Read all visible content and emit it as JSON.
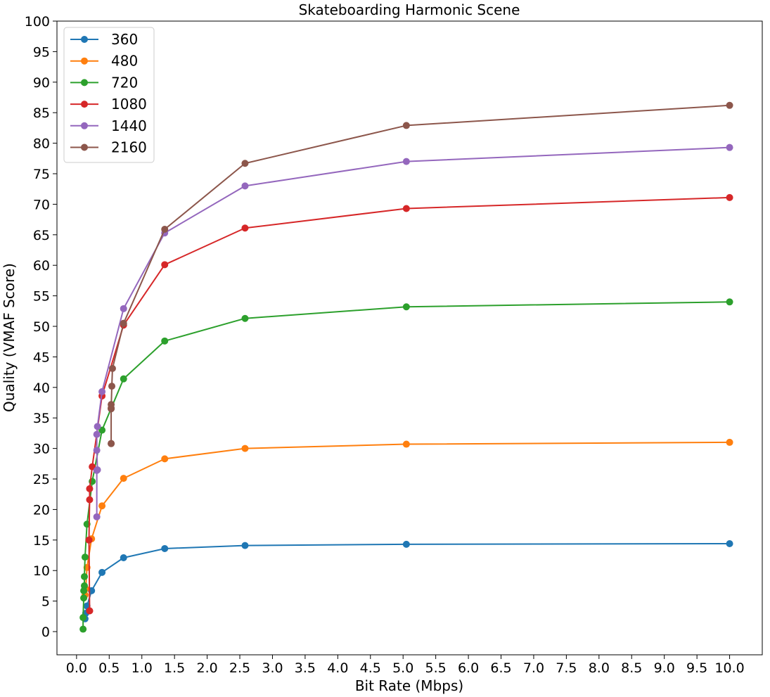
{
  "chart_data": {
    "type": "line",
    "title": "Skateboarding Harmonic Scene",
    "xlabel": "Bit Rate (Mbps)",
    "ylabel": "Quality (VMAF Score)",
    "xlim": [
      -0.3,
      10.5
    ],
    "ylim": [
      -3.8,
      100
    ],
    "xticks": [
      "0.0",
      "0.5",
      "1.0",
      "1.5",
      "2.0",
      "2.5",
      "3.0",
      "3.5",
      "4.0",
      "4.5",
      "5.0",
      "5.5",
      "6.0",
      "6.5",
      "7.0",
      "7.5",
      "8.0",
      "8.5",
      "9.0",
      "9.5",
      "10.0"
    ],
    "yticks": [
      "0",
      "5",
      "10",
      "15",
      "20",
      "25",
      "30",
      "35",
      "40",
      "45",
      "50",
      "55",
      "60",
      "65",
      "70",
      "75",
      "80",
      "85",
      "90",
      "95",
      "100"
    ],
    "grid": false,
    "legend_position": "top-left",
    "series": [
      {
        "name": "360",
        "color": "#1f77b4",
        "x": [
          0.13,
          0.14,
          0.16,
          0.23,
          0.39,
          0.72,
          1.35,
          2.58,
          5.05,
          10.0
        ],
        "y": [
          2.1,
          3.0,
          4.2,
          6.7,
          9.7,
          12.1,
          13.6,
          14.1,
          14.3,
          14.4
        ]
      },
      {
        "name": "480",
        "color": "#ff7f0e",
        "x": [
          0.13,
          0.14,
          0.16,
          0.23,
          0.39,
          0.72,
          1.35,
          2.58,
          5.05,
          10.0
        ],
        "y": [
          6.0,
          7.0,
          10.5,
          15.2,
          20.6,
          25.1,
          28.3,
          30.0,
          30.7,
          31.0
        ]
      },
      {
        "name": "720",
        "color": "#2ca02c",
        "x": [
          0.1,
          0.1,
          0.11,
          0.11,
          0.12,
          0.12,
          0.13,
          0.16,
          0.24,
          0.39,
          0.72,
          1.35,
          2.58,
          5.05,
          10.0
        ],
        "y": [
          0.4,
          2.3,
          5.5,
          6.7,
          7.5,
          9.0,
          12.2,
          17.6,
          24.6,
          33.0,
          41.4,
          47.6,
          51.3,
          53.2,
          54.0
        ]
      },
      {
        "name": "1080",
        "color": "#d62728",
        "x": [
          0.2,
          0.2,
          0.19,
          0.2,
          0.2,
          0.24,
          0.39,
          0.72,
          1.35,
          2.58,
          5.05,
          10.0
        ],
        "y": [
          3.4,
          3.4,
          15.0,
          21.6,
          23.4,
          27.0,
          38.6,
          50.2,
          60.1,
          66.1,
          69.3,
          71.1
        ]
      },
      {
        "name": "1440",
        "color": "#9467bd",
        "x": [
          0.31,
          0.31,
          0.32,
          0.31,
          0.31,
          0.32,
          0.39,
          0.72,
          1.35,
          2.58,
          5.05,
          10.0
        ],
        "y": [
          18.8,
          26.4,
          26.5,
          29.7,
          32.3,
          33.6,
          39.3,
          52.9,
          65.3,
          73.0,
          77.0,
          79.3
        ]
      },
      {
        "name": "2160",
        "color": "#8c564b",
        "x": [
          0.53,
          0.53,
          0.53,
          0.53,
          0.53,
          0.54,
          0.55,
          0.72,
          1.35,
          2.58,
          5.05,
          10.0
        ],
        "y": [
          30.8,
          30.8,
          36.6,
          37.2,
          36.5,
          40.2,
          43.1,
          50.5,
          65.9,
          76.7,
          82.9,
          86.2
        ]
      }
    ]
  }
}
